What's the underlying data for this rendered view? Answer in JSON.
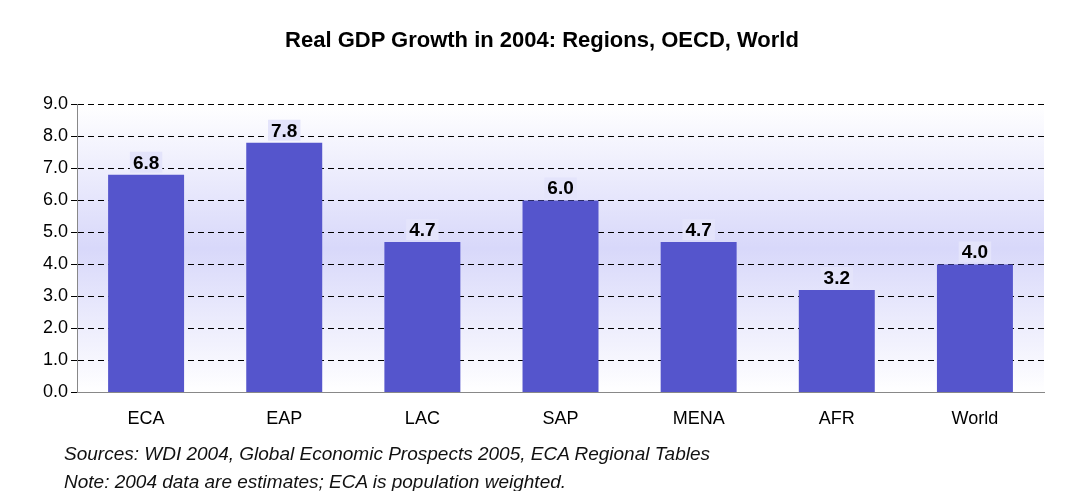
{
  "chart_data": {
    "type": "bar",
    "title": "Real GDP Growth in 2004: Regions, OECD, World",
    "categories": [
      "ECA",
      "EAP",
      "LAC",
      "SAP",
      "MENA",
      "AFR",
      "World"
    ],
    "values": [
      6.8,
      7.8,
      4.7,
      6.0,
      4.7,
      3.2,
      4.0
    ],
    "value_labels": [
      "6.8",
      "7.8",
      "4.7",
      "6.0",
      "4.7",
      "3.2",
      "4.0"
    ],
    "color": "#5555cc",
    "ylim": [
      0,
      9
    ],
    "yticks": [
      {
        "value": 0,
        "label": "0.0"
      },
      {
        "value": 1,
        "label": "1.0"
      },
      {
        "value": 2,
        "label": "2.0"
      },
      {
        "value": 3,
        "label": "3.0"
      },
      {
        "value": 4,
        "label": "4.0"
      },
      {
        "value": 5,
        "label": "5.0"
      },
      {
        "value": 6,
        "label": "6.0"
      },
      {
        "value": 7,
        "label": "7.0"
      },
      {
        "value": 8,
        "label": "8.0"
      },
      {
        "value": 9,
        "label": "9.0"
      }
    ],
    "grid": "y",
    "annotations": [
      "Sources: WDI 2004, Global Economic Prospects 2005, ECA Regional Tables",
      "Note: 2004 data are estimates; ECA is population weighted."
    ]
  }
}
